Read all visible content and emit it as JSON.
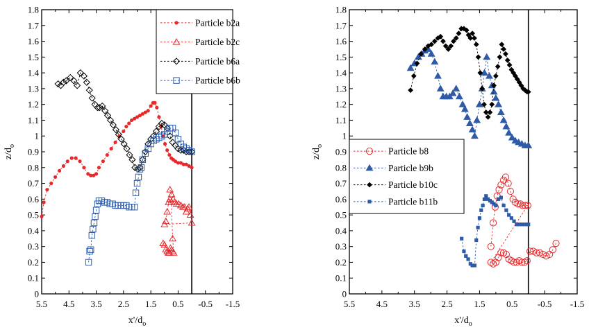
{
  "chart_data": [
    {
      "type": "scatter",
      "xlabel": "x'/d",
      "xlabel_sub": "o",
      "ylabel": "z/d",
      "ylabel_sub": "o",
      "xlim": [
        5.5,
        -1.5
      ],
      "ylim": [
        0,
        1.8
      ],
      "x_ticks": [
        5.5,
        4.5,
        3.5,
        2.5,
        1.5,
        0.5,
        -0.5,
        -1.5
      ],
      "x_tick_labels": [
        "5.5",
        "4.5",
        "3.5",
        "2.5",
        "1.5",
        "0.5",
        "-0.5",
        "-1.5"
      ],
      "y_ticks": [
        0,
        0.1,
        0.2,
        0.3,
        0.4,
        0.5,
        0.6,
        0.7,
        0.8,
        0.9,
        1,
        1.1,
        1.2,
        1.3,
        1.4,
        1.5,
        1.6,
        1.7,
        1.8
      ],
      "y_tick_labels": [
        "0",
        "0.1",
        "0.2",
        "0.3",
        "0.4",
        "0.5",
        "0.6",
        "0.7",
        "0.8",
        "0.9",
        "1",
        "1.1",
        "1.2",
        "1.3",
        "1.4",
        "1.5",
        "1.6",
        "1.7",
        "1.8"
      ],
      "vline": 0,
      "legend_position": "top-right",
      "series": [
        {
          "name": "Particle b2a",
          "color": "#e8282b",
          "marker": "dot",
          "x": [
            5.5,
            5.42,
            5.3,
            5.15,
            5.0,
            4.85,
            4.7,
            4.55,
            4.4,
            4.25,
            4.1,
            3.95,
            3.8,
            3.7,
            3.6,
            3.5,
            3.4,
            3.25,
            3.1,
            2.95,
            2.8,
            2.65,
            2.5,
            2.4,
            2.3,
            2.2,
            2.1,
            2.0,
            1.9,
            1.8,
            1.7,
            1.6,
            1.5,
            1.42,
            1.35,
            1.28,
            1.2,
            1.12,
            1.05,
            0.98,
            0.9,
            0.82,
            0.75,
            0.68,
            0.6,
            0.5,
            0.4,
            0.3,
            0.2,
            0.1,
            0.0
          ],
          "y": [
            0.49,
            0.58,
            0.66,
            0.7,
            0.74,
            0.78,
            0.81,
            0.84,
            0.86,
            0.86,
            0.84,
            0.8,
            0.76,
            0.75,
            0.75,
            0.76,
            0.8,
            0.84,
            0.88,
            0.92,
            0.96,
            1.0,
            1.03,
            1.06,
            1.08,
            1.1,
            1.11,
            1.12,
            1.13,
            1.14,
            1.15,
            1.16,
            1.19,
            1.21,
            1.21,
            1.18,
            1.12,
            1.06,
            1.0,
            0.95,
            0.91,
            0.88,
            0.86,
            0.85,
            0.84,
            0.83,
            0.83,
            0.82,
            0.82,
            0.81,
            0.8
          ]
        },
        {
          "name": "Particle b2c",
          "color": "#e8282b",
          "marker": "triangle-open",
          "x": [
            0.8,
            0.74,
            0.68,
            0.62,
            0.56,
            0.48,
            0.4,
            0.32,
            0.26,
            0.2,
            0.15,
            0.1,
            0.05,
            0.0,
            1.0,
            0.95,
            0.9,
            0.85,
            0.8,
            0.75,
            0.7,
            0.66,
            0.7,
            0.74,
            0.78,
            0.82,
            0.86,
            0.9,
            0.95,
            1.0,
            1.05
          ],
          "y": [
            0.66,
            0.63,
            0.6,
            0.58,
            0.57,
            0.57,
            0.56,
            0.55,
            0.55,
            0.52,
            0.54,
            0.55,
            0.5,
            0.45,
            0.44,
            0.46,
            0.52,
            0.58,
            0.6,
            0.58,
            0.35,
            0.26,
            0.27,
            0.28,
            0.29,
            0.26,
            0.26,
            0.27,
            0.28,
            0.31,
            0.32
          ]
        },
        {
          "name": "Particle b6a",
          "color": "#000000",
          "marker": "diamond-open",
          "x": [
            4.9,
            4.8,
            4.7,
            4.6,
            4.45,
            4.32,
            4.2,
            4.08,
            3.95,
            3.85,
            3.75,
            3.65,
            3.55,
            3.45,
            3.38,
            3.28,
            3.18,
            3.08,
            2.98,
            2.88,
            2.78,
            2.68,
            2.58,
            2.48,
            2.38,
            2.28,
            2.18,
            2.08,
            1.98,
            1.9,
            1.8,
            1.7,
            1.6,
            1.5,
            1.4,
            1.3,
            1.2,
            1.1,
            1.0,
            0.9,
            0.8,
            0.7,
            0.6,
            0.5,
            0.4,
            0.3,
            0.2,
            0.1,
            0.0
          ],
          "y": [
            1.33,
            1.32,
            1.34,
            1.35,
            1.37,
            1.35,
            1.32,
            1.4,
            1.38,
            1.34,
            1.29,
            1.24,
            1.2,
            1.18,
            1.18,
            1.19,
            1.16,
            1.13,
            1.1,
            1.07,
            1.04,
            1.01,
            0.98,
            0.95,
            0.92,
            0.88,
            0.85,
            0.8,
            0.79,
            0.8,
            0.85,
            0.9,
            0.95,
            0.98,
            1.0,
            1.03,
            1.06,
            1.08,
            1.07,
            1.05,
            1.0,
            0.96,
            0.94,
            0.92,
            0.91,
            0.91,
            0.9,
            0.9,
            0.9
          ]
        },
        {
          "name": "Particle b6b",
          "color": "#2e5aa8",
          "marker": "square-open",
          "x": [
            3.78,
            3.74,
            3.7,
            3.66,
            3.62,
            3.58,
            3.54,
            3.5,
            3.45,
            3.4,
            3.3,
            3.2,
            3.1,
            3.0,
            2.9,
            2.8,
            2.7,
            2.6,
            2.5,
            2.4,
            2.3,
            2.2,
            2.1,
            2.05,
            2.0,
            1.95,
            1.9,
            1.85,
            1.8,
            1.7,
            1.6,
            1.5,
            1.4,
            1.3,
            1.2,
            1.1,
            1.0,
            0.9,
            0.8,
            0.7,
            0.6,
            0.5,
            0.4,
            0.3,
            0.2,
            0.1,
            0.0
          ],
          "y": [
            0.2,
            0.27,
            0.28,
            0.37,
            0.41,
            0.45,
            0.49,
            0.53,
            0.57,
            0.59,
            0.59,
            0.58,
            0.58,
            0.57,
            0.57,
            0.56,
            0.56,
            0.56,
            0.56,
            0.56,
            0.55,
            0.55,
            0.55,
            0.64,
            0.7,
            0.74,
            0.79,
            0.8,
            0.85,
            0.89,
            0.92,
            0.95,
            0.97,
            0.98,
            0.99,
            1.0,
            1.01,
            1.03,
            1.05,
            1.05,
            1.02,
            0.98,
            0.95,
            0.93,
            0.92,
            0.91,
            0.9
          ]
        }
      ]
    },
    {
      "type": "scatter",
      "xlabel": "x'/d",
      "xlabel_sub": "o",
      "ylabel": "z/d",
      "ylabel_sub": "o",
      "xlim": [
        5.5,
        -1.5
      ],
      "ylim": [
        0,
        1.8
      ],
      "x_ticks": [
        5.5,
        4.5,
        3.5,
        2.5,
        1.5,
        0.5,
        -0.5,
        -1.5
      ],
      "x_tick_labels": [
        "5.5",
        "4.5",
        "3.5",
        "2.5",
        "1.5",
        "0.5",
        "-0.5",
        "-1.5"
      ],
      "y_ticks": [
        0,
        0.1,
        0.2,
        0.3,
        0.4,
        0.5,
        0.6,
        0.7,
        0.8,
        0.9,
        1,
        1.1,
        1.2,
        1.3,
        1.4,
        1.5,
        1.6,
        1.7,
        1.8
      ],
      "y_tick_labels": [
        "0",
        "0.1",
        "0.2",
        "0.3",
        "0.4",
        "0.5",
        "0.6",
        "0.7",
        "0.8",
        "0.9",
        "1",
        "1.1",
        "1.2",
        "1.3",
        "1.4",
        "1.5",
        "1.6",
        "1.7",
        "1.8"
      ],
      "vline": 0,
      "legend_position": "lower-left",
      "series": [
        {
          "name": "Particle b8",
          "color": "#e8282b",
          "marker": "circle-open",
          "x": [
            1.15,
            1.08,
            1.02,
            0.96,
            0.9,
            0.84,
            0.76,
            0.7,
            0.62,
            0.55,
            0.47,
            0.4,
            0.32,
            0.25,
            0.18,
            0.1,
            0.02,
            1.15,
            1.08,
            1.0,
            0.92,
            0.84,
            0.76,
            0.68,
            0.6,
            0.52,
            0.44,
            0.36,
            0.28,
            0.2,
            0.12,
            0.04,
            -0.05,
            -0.15,
            -0.25,
            -0.35,
            -0.45,
            -0.55,
            -0.65,
            -0.75,
            -0.85
          ],
          "y": [
            0.3,
            0.45,
            0.55,
            0.62,
            0.66,
            0.69,
            0.72,
            0.74,
            0.7,
            0.65,
            0.6,
            0.58,
            0.57,
            0.57,
            0.56,
            0.56,
            0.56,
            0.2,
            0.19,
            0.2,
            0.23,
            0.26,
            0.26,
            0.25,
            0.22,
            0.21,
            0.2,
            0.2,
            0.21,
            0.2,
            0.2,
            0.21,
            0.27,
            0.27,
            0.26,
            0.26,
            0.25,
            0.24,
            0.25,
            0.28,
            0.32
          ]
        },
        {
          "name": "Particle b9b",
          "color": "#2e5aa8",
          "marker": "triangle-filled",
          "x": [
            3.62,
            3.5,
            3.38,
            3.28,
            3.18,
            3.08,
            2.98,
            2.88,
            2.78,
            2.7,
            2.62,
            2.52,
            2.42,
            2.32,
            2.22,
            2.12,
            2.02,
            1.95,
            1.88,
            1.8,
            1.72,
            1.65,
            1.58,
            1.5,
            1.42,
            1.35,
            1.28,
            1.2,
            1.12,
            1.06,
            1.0,
            0.92,
            0.84,
            0.76,
            0.68,
            0.6,
            0.5,
            0.4,
            0.3,
            0.2,
            0.1,
            0.0
          ],
          "y": [
            1.43,
            1.46,
            1.5,
            1.52,
            1.54,
            1.55,
            1.52,
            1.47,
            1.38,
            1.3,
            1.25,
            1.25,
            1.25,
            1.27,
            1.3,
            1.25,
            1.2,
            1.17,
            1.12,
            1.08,
            1.04,
            1.0,
            1.1,
            1.2,
            1.3,
            1.4,
            1.5,
            1.38,
            1.32,
            1.28,
            1.24,
            1.2,
            1.15,
            1.1,
            1.06,
            1.02,
            0.99,
            0.97,
            0.96,
            0.95,
            0.94,
            0.94
          ]
        },
        {
          "name": "Particle b10c",
          "color": "#000000",
          "marker": "diamond-filled",
          "x": [
            3.62,
            3.52,
            3.42,
            3.3,
            3.18,
            3.08,
            2.98,
            2.88,
            2.78,
            2.7,
            2.62,
            2.54,
            2.46,
            2.38,
            2.3,
            2.22,
            2.14,
            2.06,
            1.98,
            1.9,
            1.84,
            1.78,
            1.72,
            1.66,
            1.6,
            1.54,
            1.48,
            1.42,
            1.36,
            1.3,
            1.24,
            1.18,
            1.12,
            1.06,
            1.0,
            0.94,
            0.88,
            0.82,
            0.76,
            0.7,
            0.64,
            0.58,
            0.52,
            0.46,
            0.4,
            0.34,
            0.28,
            0.22,
            0.16,
            0.1,
            0.04,
            0.0
          ],
          "y": [
            1.29,
            1.38,
            1.46,
            1.52,
            1.55,
            1.57,
            1.58,
            1.6,
            1.62,
            1.63,
            1.6,
            1.57,
            1.55,
            1.57,
            1.6,
            1.62,
            1.65,
            1.68,
            1.68,
            1.67,
            1.64,
            1.62,
            1.65,
            1.62,
            1.58,
            1.5,
            1.4,
            1.3,
            1.2,
            1.15,
            1.12,
            1.15,
            1.2,
            1.32,
            1.38,
            1.44,
            1.5,
            1.58,
            1.55,
            1.52,
            1.48,
            1.45,
            1.42,
            1.4,
            1.38,
            1.36,
            1.34,
            1.32,
            1.3,
            1.29,
            1.28,
            1.28
          ]
        },
        {
          "name": "Particle b11b",
          "color": "#2e5aa8",
          "marker": "square-filled",
          "x": [
            2.05,
            1.98,
            1.92,
            1.85,
            1.78,
            1.72,
            1.65,
            1.6,
            1.55,
            1.5,
            1.45,
            1.4,
            1.35,
            1.3,
            1.24,
            1.18,
            1.12,
            1.06,
            1.0,
            0.92,
            0.84,
            0.76,
            0.68,
            0.6,
            0.52,
            0.44,
            0.36,
            0.28,
            0.2,
            0.12,
            0.04,
            0.0
          ],
          "y": [
            0.35,
            0.27,
            0.24,
            0.22,
            0.19,
            0.18,
            0.18,
            0.34,
            0.42,
            0.48,
            0.53,
            0.56,
            0.6,
            0.62,
            0.6,
            0.59,
            0.58,
            0.57,
            0.56,
            0.6,
            0.61,
            0.56,
            0.53,
            0.5,
            0.48,
            0.46,
            0.44,
            0.44,
            0.44,
            0.44,
            0.44,
            0.44
          ]
        }
      ]
    }
  ]
}
